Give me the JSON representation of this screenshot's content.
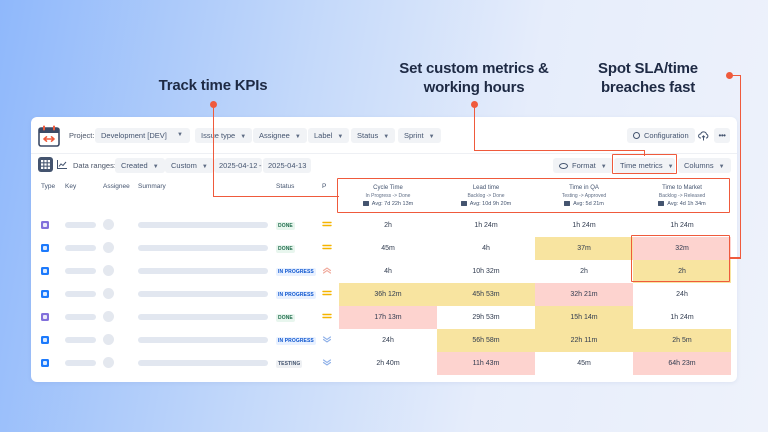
{
  "callouts": [
    {
      "title_line1": "Track time KPIs",
      "title_line2": ""
    },
    {
      "title_line1": "Set custom metrics &",
      "title_line2": "working hours"
    },
    {
      "title_line1": "Spot SLA/time",
      "title_line2": "breaches fast"
    }
  ],
  "accent_color": "#ef5a3c",
  "toolbar": {
    "project_label": "Project:",
    "project_value": "Development [DEV]",
    "filters": [
      "Issue type",
      "Assignee",
      "Label",
      "Status",
      "Sprint"
    ],
    "configuration_label": "Configuration",
    "cloud_icon": "cloud-upload-icon",
    "more_icon": "more-icon"
  },
  "subbar": {
    "data_ranges_label": "Data ranges:",
    "date_field": "Created",
    "range_type": "Custom",
    "date_from": "2025-04-12",
    "date_separator": "-",
    "date_to": "2025-04-13",
    "format_label": "Format",
    "time_metrics_label": "Time metrics",
    "columns_label": "Columns"
  },
  "table": {
    "columns": {
      "type": "Type",
      "key": "Key",
      "assignee": "Assignee",
      "summary": "Summary",
      "status": "Status",
      "priority": "P"
    },
    "metrics": [
      {
        "title": "Cycle Time",
        "span": "In Progress -> Done",
        "avg": "Avg: 7d 22h 13m"
      },
      {
        "title": "Lead time",
        "span": "Backlog -> Done",
        "avg": "Avg: 10d 9h 20m"
      },
      {
        "title": "Time in QA",
        "span": "Testing -> Approved",
        "avg": "Avg: 5d 21m"
      },
      {
        "title": "Time to Market",
        "span": "Backlog -> Released",
        "avg": "Avg: 4d 1h 34m"
      }
    ],
    "rows": [
      {
        "type": "story",
        "type_color": "#8270db",
        "status": "DONE",
        "status_kind": "done",
        "priority": "medium",
        "values": [
          "2h",
          "1h 24m",
          "1h 24m",
          "1h 24m"
        ],
        "highlights": [
          "",
          "",
          "",
          ""
        ]
      },
      {
        "type": "subtask",
        "type_color": "#1d7afc",
        "status": "DONE",
        "status_kind": "done",
        "priority": "medium",
        "values": [
          "45m",
          "4h",
          "37m",
          "32m"
        ],
        "highlights": [
          "",
          "",
          "yellow",
          "red"
        ]
      },
      {
        "type": "task",
        "type_color": "#1d7afc",
        "status": "IN PROGRESS",
        "status_kind": "progress",
        "priority": "high",
        "values": [
          "4h",
          "10h 32m",
          "2h",
          "2h"
        ],
        "highlights": [
          "",
          "",
          "",
          "yellow"
        ]
      },
      {
        "type": "task",
        "type_color": "#1d7afc",
        "status": "IN PROGRESS",
        "status_kind": "progress",
        "priority": "medium",
        "values": [
          "36h 12m",
          "45h 53m",
          "32h 21m",
          "24h"
        ],
        "highlights": [
          "yellow",
          "yellow",
          "red",
          ""
        ]
      },
      {
        "type": "story",
        "type_color": "#8270db",
        "status": "DONE",
        "status_kind": "done",
        "priority": "medium",
        "values": [
          "17h 13m",
          "29h 53m",
          "15h 14m",
          "1h 24m"
        ],
        "highlights": [
          "red",
          "",
          "yellow",
          ""
        ]
      },
      {
        "type": "subtask",
        "type_color": "#1d7afc",
        "status": "IN PROGRESS",
        "status_kind": "progress",
        "priority": "low",
        "values": [
          "24h",
          "56h 58m",
          "22h 11m",
          "2h 5m"
        ],
        "highlights": [
          "",
          "yellow",
          "yellow",
          "yellow"
        ]
      },
      {
        "type": "subtask",
        "type_color": "#1d7afc",
        "status": "TESTING",
        "status_kind": "testing",
        "priority": "low",
        "values": [
          "2h 40m",
          "11h 43m",
          "45m",
          "64h 23m"
        ],
        "highlights": [
          "",
          "red",
          "",
          "red"
        ]
      }
    ]
  }
}
